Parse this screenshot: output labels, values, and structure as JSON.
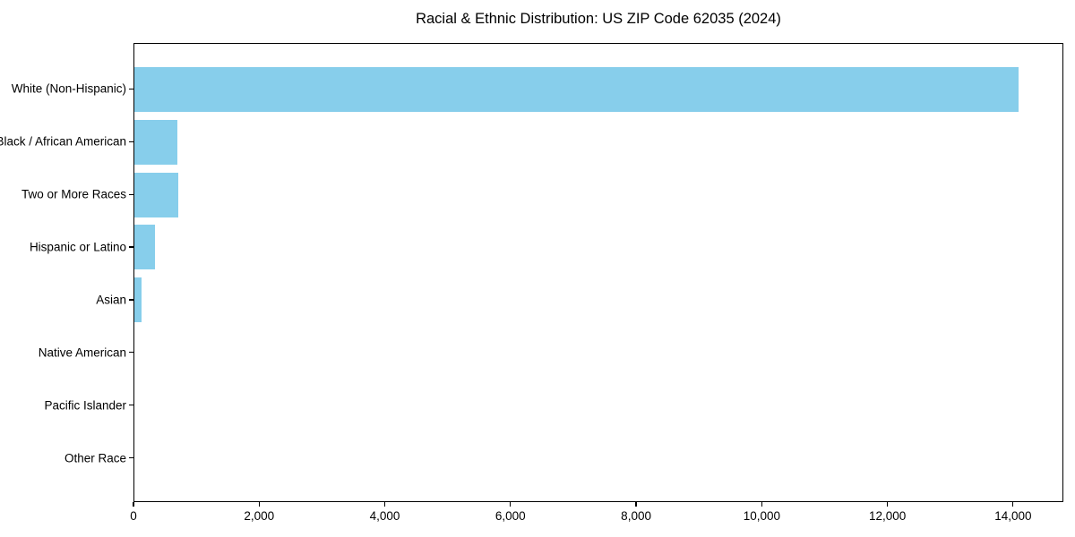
{
  "chart_data": {
    "type": "bar",
    "orientation": "horizontal",
    "title": "Racial & Ethnic Distribution: US ZIP Code 62035 (2024)",
    "categories": [
      "White (Non-Hispanic)",
      "Black / African American",
      "Two or More Races",
      "Hispanic or Latino",
      "Asian",
      "Native American",
      "Pacific Islander",
      "Other Race"
    ],
    "values": [
      14100,
      685,
      705,
      325,
      120,
      0,
      0,
      0
    ],
    "xlabel": "",
    "ylabel": "",
    "xlim": [
      0,
      14800
    ],
    "xticks": [
      0,
      2000,
      4000,
      6000,
      8000,
      10000,
      12000,
      14000
    ],
    "xtick_labels": [
      "0",
      "2,000",
      "4,000",
      "6,000",
      "8,000",
      "10,000",
      "12,000",
      "14,000"
    ],
    "bar_color": "#87CEEB",
    "axis_color": "#000000",
    "text_color": "#000000",
    "grid": false,
    "legend": null
  }
}
